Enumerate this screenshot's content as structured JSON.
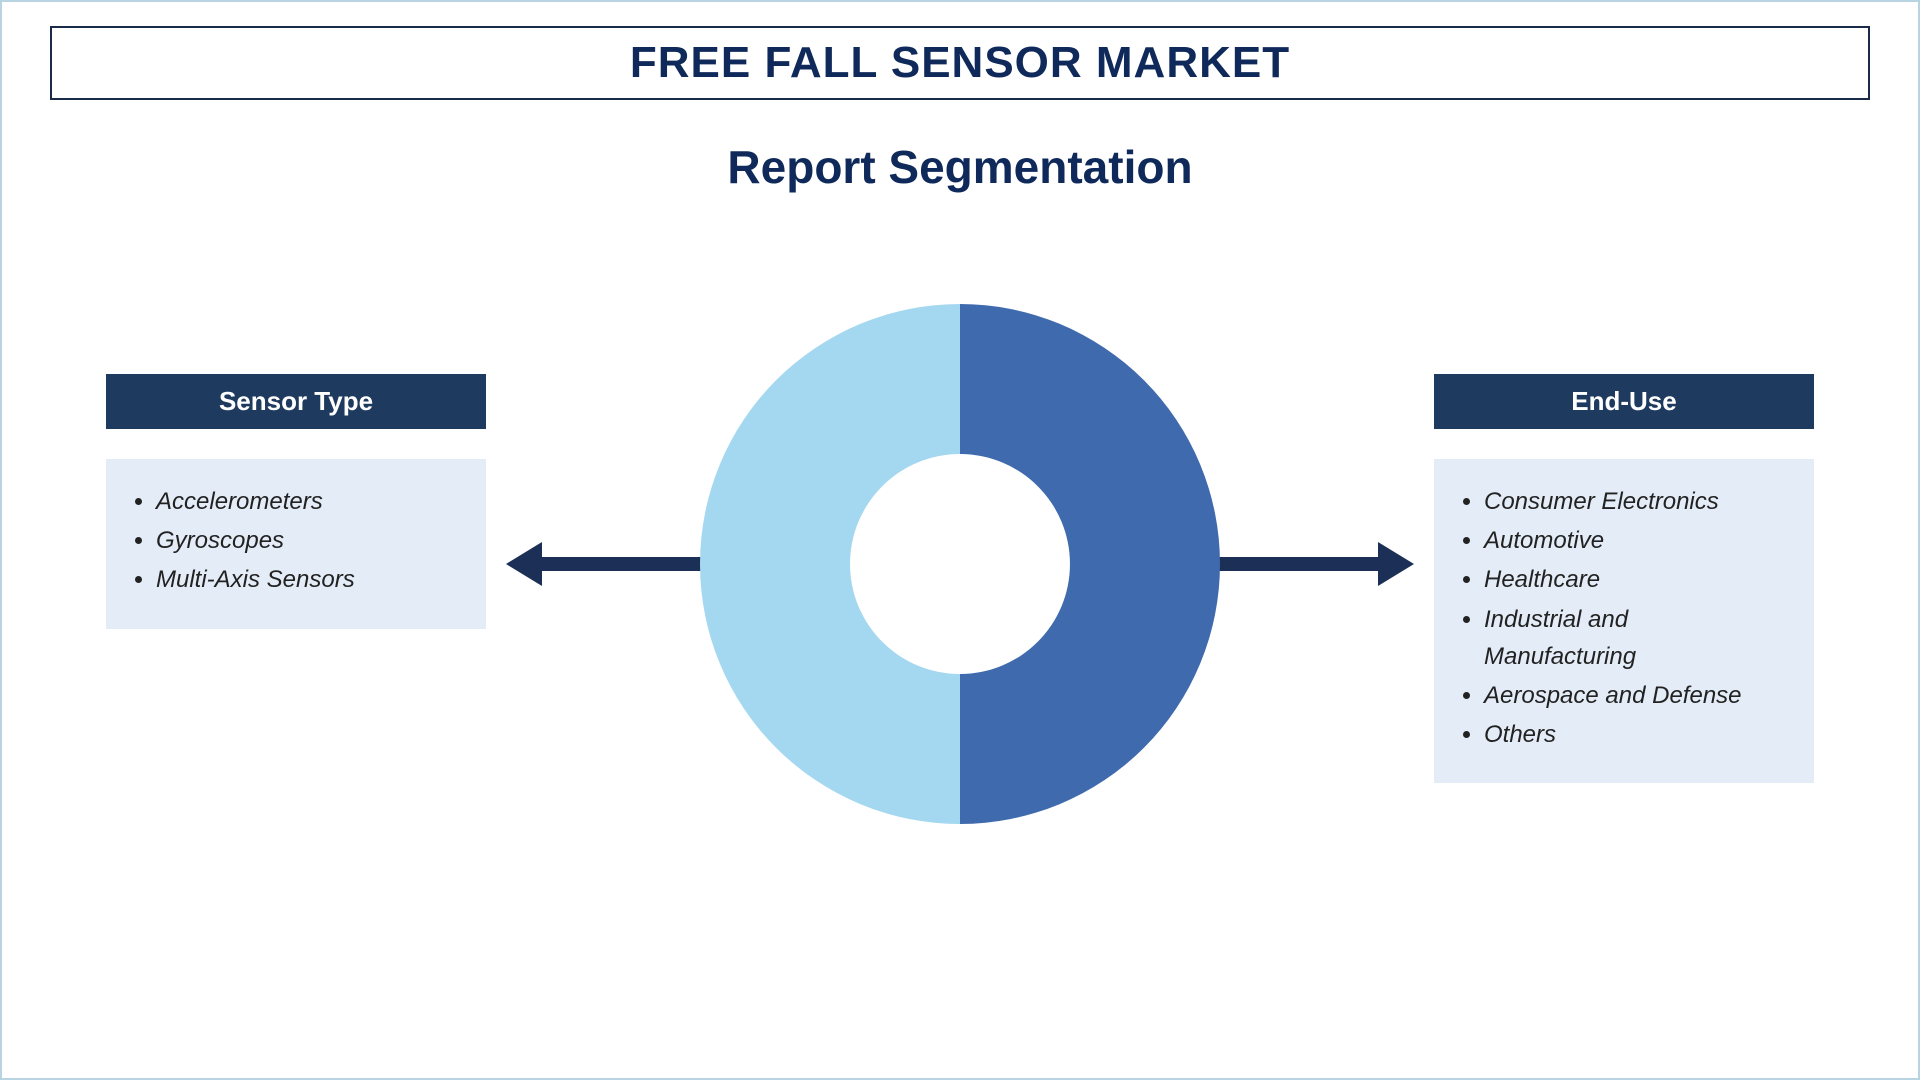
{
  "title": "FREE FALL SENSOR MARKET",
  "subtitle": "Report Segmentation",
  "colors": {
    "title_text": "#0f2a5a",
    "title_border": "#1a2b4a",
    "outer_border": "#b8d4e3",
    "header_bg": "#1f3a5f",
    "list_bg": "#e4ecf7",
    "list_text": "#222222",
    "donut_left": "#a4d8f0",
    "donut_right": "#3f6aae",
    "arrow": "#1b2f57",
    "background": "#ffffff"
  },
  "donut": {
    "type": "donut",
    "outer_radius": 260,
    "inner_radius": 110,
    "slices": [
      {
        "start_deg": 180,
        "end_deg": 360,
        "color": "#a4d8f0"
      },
      {
        "start_deg": 0,
        "end_deg": 180,
        "color": "#3f6aae"
      }
    ]
  },
  "segments": {
    "left": {
      "header": "Sensor Type",
      "items": [
        "Accelerometers",
        "Gyroscopes",
        "Multi-Axis Sensors"
      ]
    },
    "right": {
      "header": "End-Use",
      "items": [
        "Consumer Electronics",
        "Automotive",
        "Healthcare",
        "Industrial and Manufacturing",
        "Aerospace and Defense",
        "Others"
      ]
    }
  },
  "arrow": {
    "shaft_length": 180,
    "shaft_width": 14,
    "head_length": 36,
    "head_width": 44,
    "color": "#1b2f57"
  },
  "typography": {
    "title_fontsize": 44,
    "subtitle_fontsize": 46,
    "header_fontsize": 26,
    "list_fontsize": 24
  }
}
